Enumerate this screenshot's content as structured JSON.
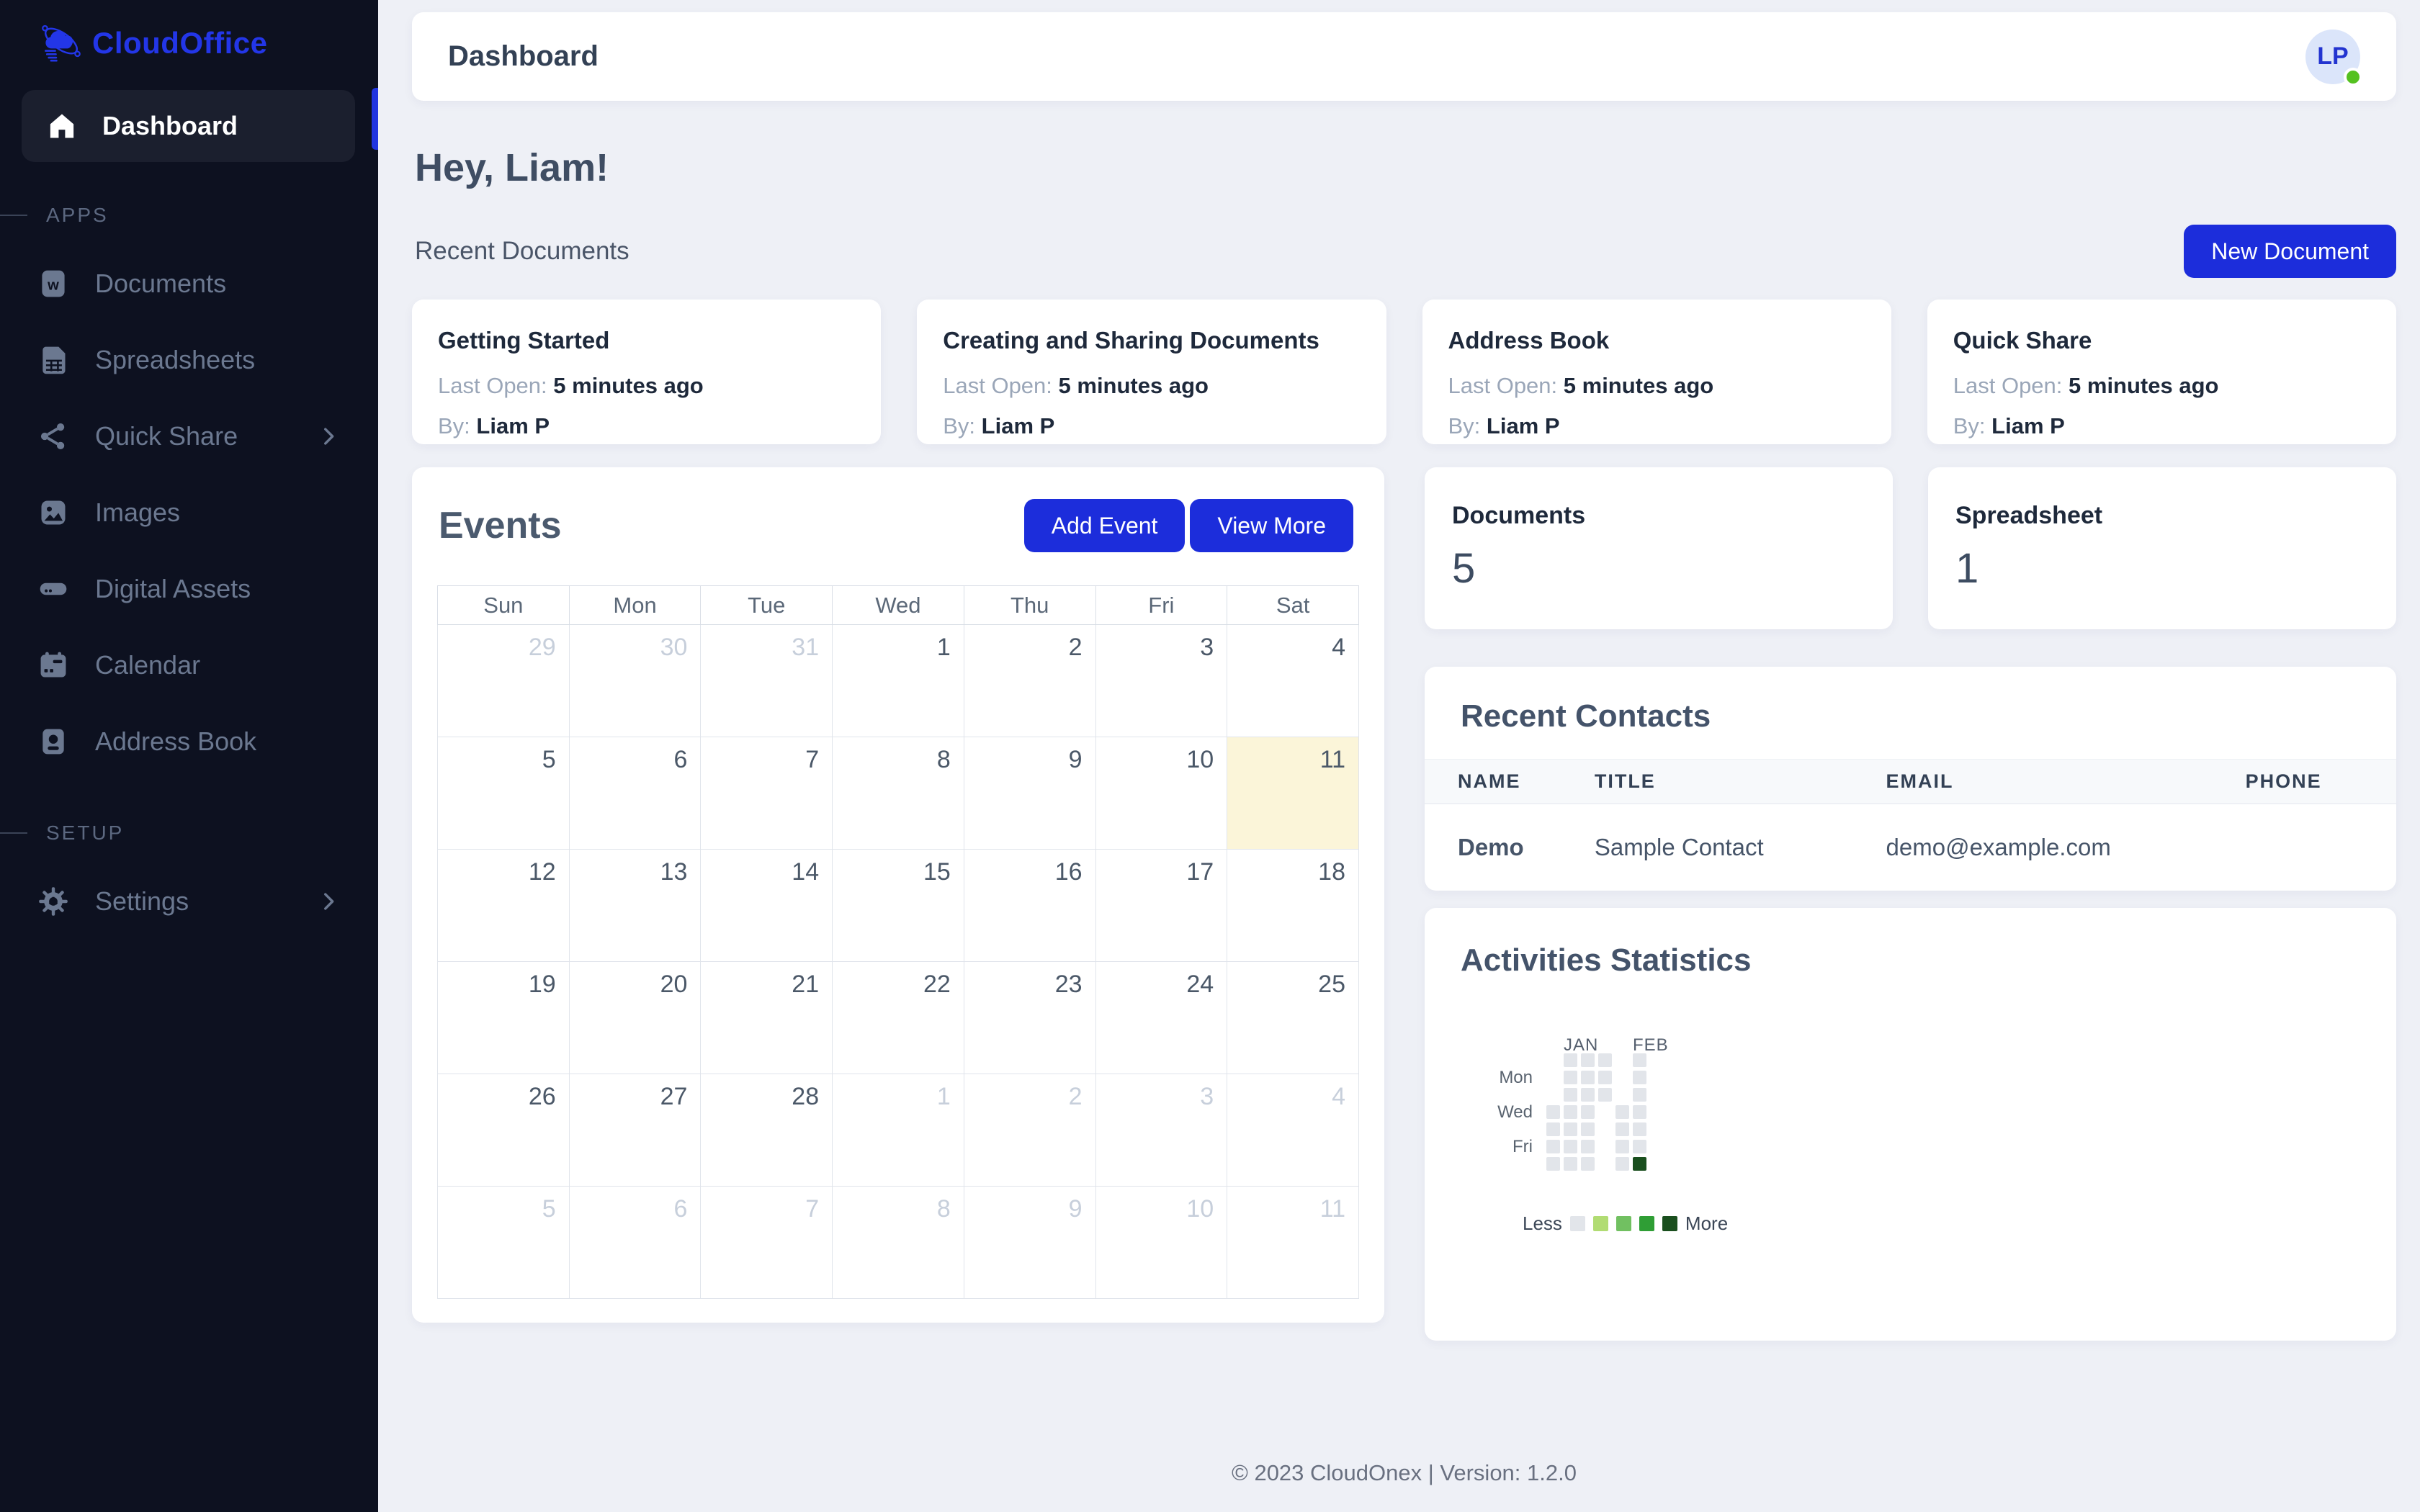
{
  "app": {
    "brand": "CloudOffice",
    "footer": "© 2023 CloudOnex | Version: 1.2.0",
    "accent_color": "#1c2ddb"
  },
  "sidebar": {
    "active_item": {
      "label": "Dashboard",
      "icon": "home-icon"
    },
    "sections": [
      {
        "label": "APPS",
        "items": [
          {
            "label": "Documents",
            "icon": "word-doc-icon",
            "chevron": false
          },
          {
            "label": "Spreadsheets",
            "icon": "spreadsheet-icon",
            "chevron": false
          },
          {
            "label": "Quick Share",
            "icon": "share-icon",
            "chevron": true
          },
          {
            "label": "Images",
            "icon": "image-icon",
            "chevron": false
          },
          {
            "label": "Digital Assets",
            "icon": "drive-icon",
            "chevron": false
          },
          {
            "label": "Calendar",
            "icon": "calendar-icon",
            "chevron": false
          },
          {
            "label": "Address Book",
            "icon": "address-book-icon",
            "chevron": false
          }
        ]
      },
      {
        "label": "SETUP",
        "items": [
          {
            "label": "Settings",
            "icon": "gear-icon",
            "chevron": true
          }
        ]
      }
    ]
  },
  "header": {
    "title": "Dashboard",
    "avatar": {
      "initials": "LP",
      "status_color": "#54c120"
    }
  },
  "main": {
    "greeting": "Hey, Liam!",
    "recent_documents": {
      "label": "Recent Documents",
      "new_button": "New Document",
      "cards": [
        {
          "title": "Getting Started",
          "last_open_label": "Last Open:",
          "last_open_value": "5 minutes ago",
          "by_label": "By:",
          "by_value": "Liam P"
        },
        {
          "title": "Creating and Sharing Documents",
          "last_open_label": "Last Open:",
          "last_open_value": "5 minutes ago",
          "by_label": "By:",
          "by_value": "Liam P"
        },
        {
          "title": "Address Book",
          "last_open_label": "Last Open:",
          "last_open_value": "5 minutes ago",
          "by_label": "By:",
          "by_value": "Liam P"
        },
        {
          "title": "Quick Share",
          "last_open_label": "Last Open:",
          "last_open_value": "5 minutes ago",
          "by_label": "By:",
          "by_value": "Liam P"
        }
      ]
    },
    "events": {
      "title": "Events",
      "add_button": "Add Event",
      "view_button": "View More",
      "calendar": {
        "weekdays": [
          "Sun",
          "Mon",
          "Tue",
          "Wed",
          "Thu",
          "Fri",
          "Sat"
        ],
        "rows": [
          [
            {
              "d": 29,
              "out": true
            },
            {
              "d": 30,
              "out": true
            },
            {
              "d": 31,
              "out": true
            },
            {
              "d": 1
            },
            {
              "d": 2
            },
            {
              "d": 3
            },
            {
              "d": 4
            }
          ],
          [
            {
              "d": 5
            },
            {
              "d": 6
            },
            {
              "d": 7
            },
            {
              "d": 8
            },
            {
              "d": 9
            },
            {
              "d": 10
            },
            {
              "d": 11,
              "hl": true
            }
          ],
          [
            {
              "d": 12
            },
            {
              "d": 13
            },
            {
              "d": 14
            },
            {
              "d": 15
            },
            {
              "d": 16
            },
            {
              "d": 17
            },
            {
              "d": 18
            }
          ],
          [
            {
              "d": 19
            },
            {
              "d": 20
            },
            {
              "d": 21
            },
            {
              "d": 22
            },
            {
              "d": 23
            },
            {
              "d": 24
            },
            {
              "d": 25
            }
          ],
          [
            {
              "d": 26
            },
            {
              "d": 27
            },
            {
              "d": 28
            },
            {
              "d": 1,
              "out": true
            },
            {
              "d": 2,
              "out": true
            },
            {
              "d": 3,
              "out": true
            },
            {
              "d": 4,
              "out": true
            }
          ],
          [
            {
              "d": 5,
              "out": true
            },
            {
              "d": 6,
              "out": true
            },
            {
              "d": 7,
              "out": true
            },
            {
              "d": 8,
              "out": true
            },
            {
              "d": 9,
              "out": true
            },
            {
              "d": 10,
              "out": true
            },
            {
              "d": 11,
              "out": true
            }
          ]
        ],
        "highlight_color": "#fbf5d9"
      }
    },
    "stats": [
      {
        "label": "Documents",
        "value": "5"
      },
      {
        "label": "Spreadsheet",
        "value": "1"
      }
    ],
    "contacts": {
      "title": "Recent Contacts",
      "columns": [
        "NAME",
        "TITLE",
        "EMAIL",
        "PHONE"
      ],
      "rows": [
        {
          "name": "Demo",
          "title": "Sample Contact",
          "email": "demo@example.com",
          "phone": ""
        }
      ]
    },
    "activities": {
      "title": "Activities Statistics",
      "months": [
        {
          "label": "JAN",
          "col": 2
        },
        {
          "label": "FEB",
          "col": 6
        }
      ],
      "day_labels": [
        "",
        "Mon",
        "",
        "Wed",
        "",
        "Fri",
        ""
      ],
      "palette": [
        "#e2e5ea",
        "#b1dc73",
        "#71c061",
        "#2f9e35",
        "#1a4f1e"
      ],
      "cells": [
        [
          -1,
          0,
          0,
          0,
          -1,
          0
        ],
        [
          -1,
          0,
          0,
          0,
          -1,
          0
        ],
        [
          -1,
          0,
          0,
          0,
          -1,
          0
        ],
        [
          0,
          0,
          0,
          -1,
          0,
          0
        ],
        [
          0,
          0,
          0,
          -1,
          0,
          0
        ],
        [
          0,
          0,
          0,
          -1,
          0,
          0
        ],
        [
          0,
          0,
          0,
          -1,
          0,
          4
        ]
      ],
      "legend": {
        "less": "Less",
        "more": "More"
      }
    }
  }
}
